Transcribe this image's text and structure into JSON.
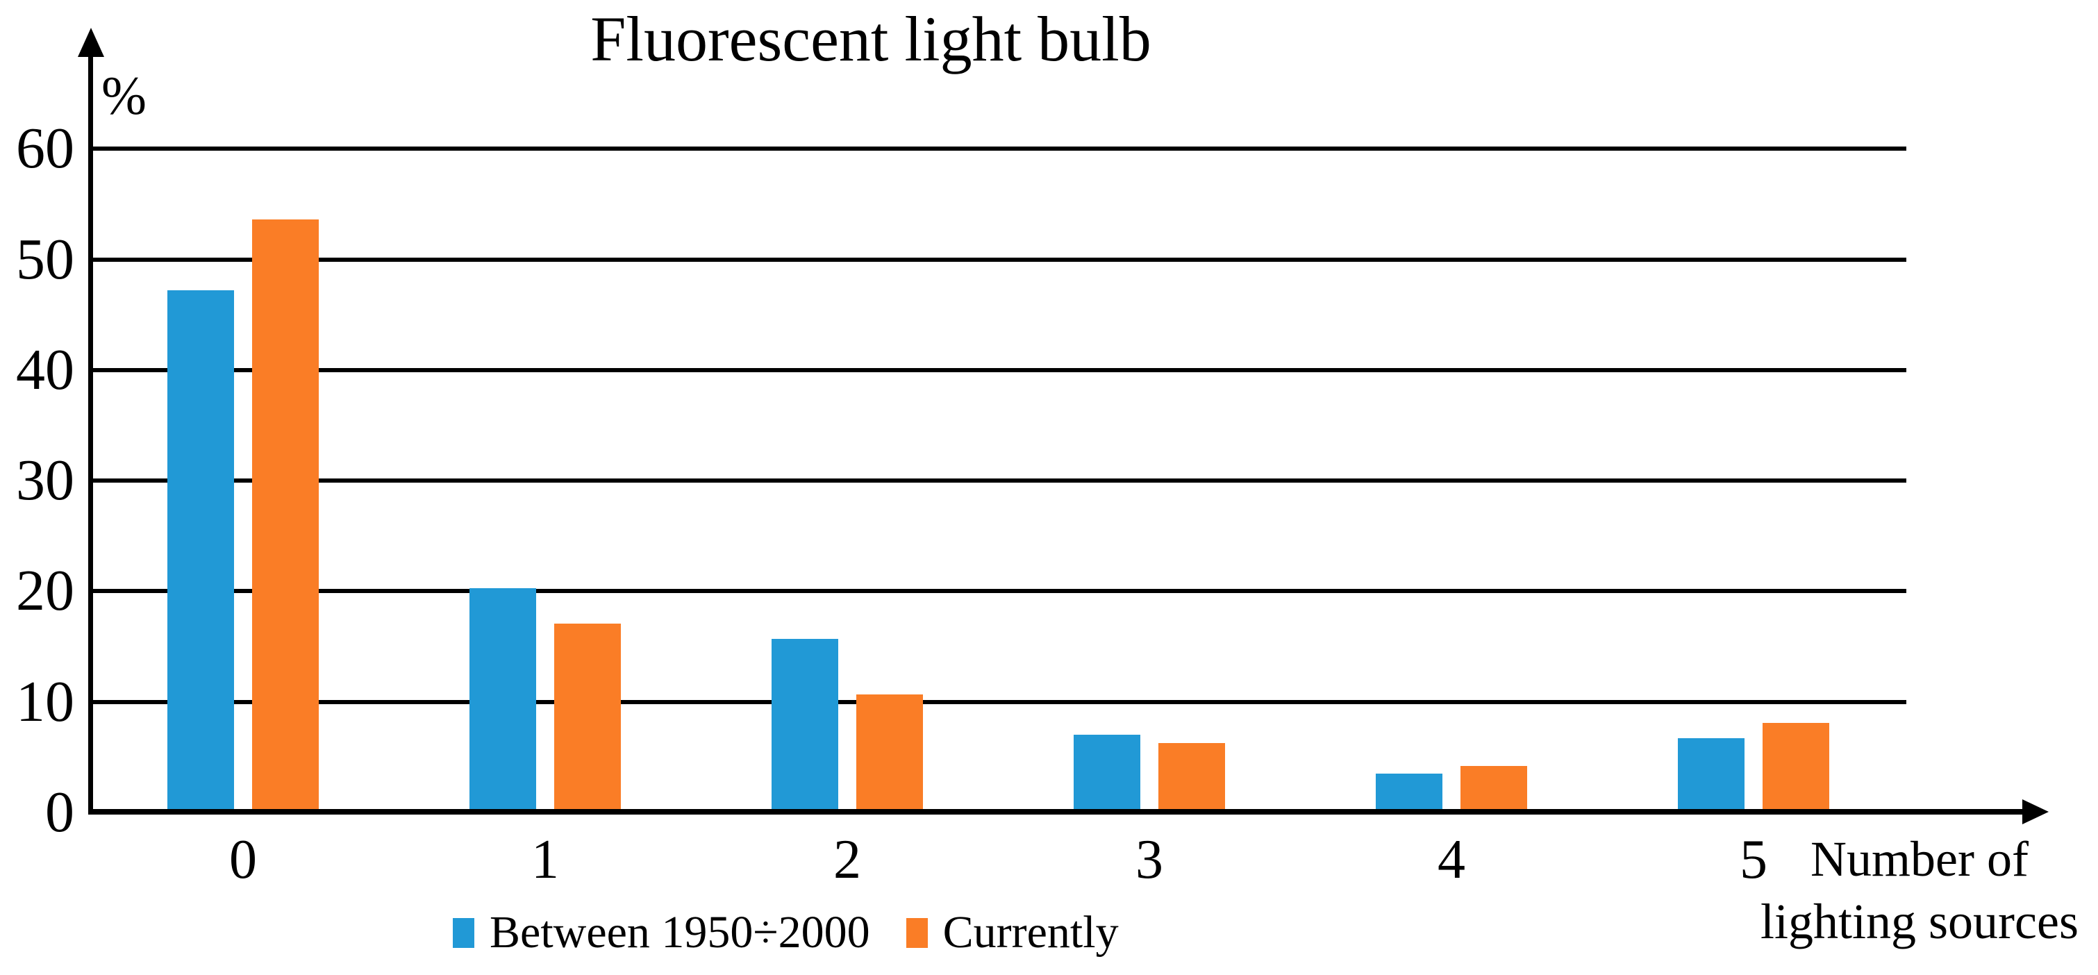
{
  "chart_data": {
    "type": "bar",
    "title": "Fluorescent light bulb",
    "ylabel": "%",
    "xlabel_lines": [
      "Number of",
      "lighting sources"
    ],
    "categories": [
      "0",
      "1",
      "2",
      "3",
      "4",
      "5"
    ],
    "series": [
      {
        "name": "Between 1950÷2000",
        "color": "#2199D6",
        "values": [
          47.2,
          20.3,
          15.7,
          7.0,
          3.5,
          6.7
        ]
      },
      {
        "name": "Currently",
        "color": "#FA7D26",
        "values": [
          53.6,
          17.1,
          10.7,
          6.3,
          4.2,
          8.1
        ]
      }
    ],
    "y_ticks": [
      0,
      10,
      20,
      30,
      40,
      50,
      60
    ],
    "ylim": [
      0,
      66
    ],
    "grid": true,
    "legend_position": "bottom",
    "axis_color": "#000000"
  }
}
